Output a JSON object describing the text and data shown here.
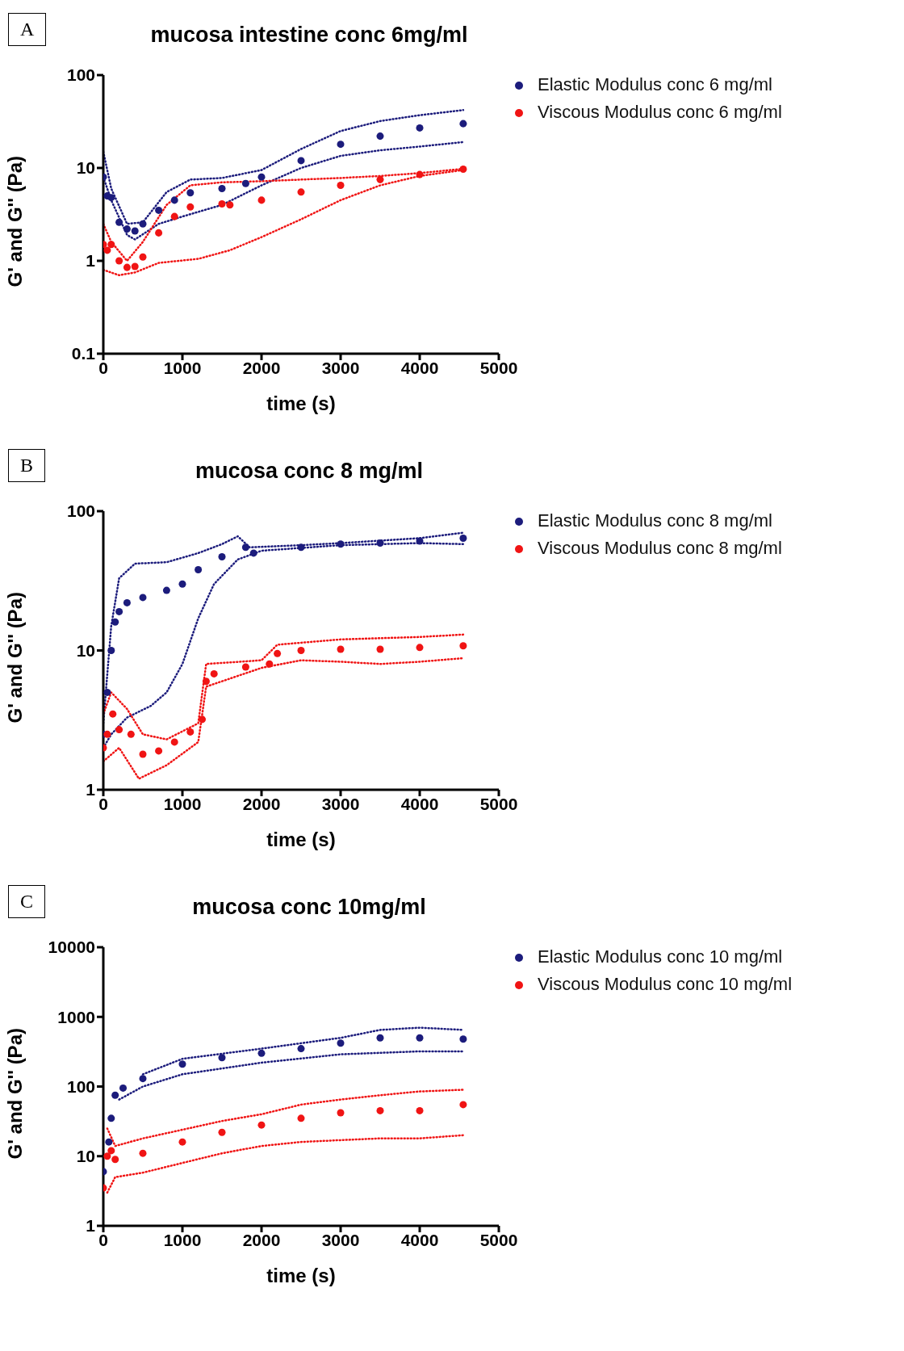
{
  "chart_data": [
    {
      "type": "scatter",
      "title": "mucosa intestine conc 6mg/ml",
      "xlabel": "time (s)",
      "ylabel": "G' and G'' (Pa)",
      "annotations": [
        "A"
      ],
      "log": "y",
      "xlim": [
        0,
        5000
      ],
      "xticks": [
        0,
        1000,
        2000,
        3000,
        4000,
        5000
      ],
      "ylim": [
        0.1,
        100
      ],
      "yticks": [
        0.1,
        1,
        10,
        100
      ],
      "legend": "top right",
      "marker": "circle",
      "series": [
        {
          "name": "Elastic Modulus conc 6 mg/ml",
          "color": "#1c1c7c",
          "x": [
            0,
            50,
            100,
            200,
            300,
            400,
            500,
            700,
            900,
            1100,
            1500,
            1800,
            2000,
            2500,
            3000,
            3500,
            4000,
            4550
          ],
          "values": [
            8,
            5,
            4.8,
            2.6,
            2.2,
            2.1,
            2.5,
            3.5,
            4.5,
            5.4,
            6,
            6.8,
            8,
            12,
            18,
            22,
            27,
            30
          ]
        },
        {
          "name": "Viscous Modulus conc 6 mg/ml",
          "color": "#f01414",
          "x": [
            0,
            50,
            100,
            200,
            300,
            400,
            500,
            700,
            900,
            1100,
            1500,
            1600,
            2000,
            2500,
            3000,
            3500,
            4000,
            4550
          ],
          "values": [
            1.5,
            1.3,
            1.5,
            1.0,
            0.85,
            0.87,
            1.1,
            2.0,
            3.0,
            3.8,
            4.1,
            4.0,
            4.5,
            5.5,
            6.5,
            7.5,
            8.5,
            9.7
          ]
        },
        {
          "type": "line",
          "line_style": "dotted",
          "marker": "none",
          "color": "#1c1c7c",
          "x": [
            0,
            100,
            300,
            500,
            800,
            1100,
            1500,
            2000,
            2500,
            3000,
            3500,
            4000,
            4550
          ],
          "values": [
            15,
            6,
            2.5,
            2.6,
            5.5,
            7.5,
            7.8,
            9.5,
            16,
            25,
            32,
            37,
            42
          ]
        },
        {
          "type": "line",
          "line_style": "dotted",
          "marker": "none",
          "color": "#1c1c7c",
          "x": [
            0,
            100,
            300,
            400,
            700,
            1000,
            1500,
            2000,
            2500,
            3000,
            3500,
            4000,
            4550
          ],
          "values": [
            8,
            4.5,
            1.9,
            1.7,
            2.5,
            3.0,
            4.0,
            6.5,
            10,
            13.5,
            15.5,
            17,
            19
          ]
        },
        {
          "type": "line",
          "line_style": "dotted",
          "marker": "none",
          "color": "#f01414",
          "x": [
            0,
            100,
            300,
            500,
            800,
            1100,
            1500,
            2000,
            2500,
            3000,
            3500,
            4000,
            4550
          ],
          "values": [
            2.5,
            1.6,
            1.0,
            1.6,
            4,
            6.5,
            7,
            7.2,
            7.5,
            7.8,
            8.2,
            8.8,
            9.8
          ]
        },
        {
          "type": "line",
          "line_style": "dotted",
          "marker": "none",
          "color": "#f01414",
          "x": [
            0,
            200,
            400,
            700,
            1200,
            1600,
            2000,
            2500,
            3000,
            3500,
            4000,
            4550
          ],
          "values": [
            0.8,
            0.7,
            0.75,
            0.95,
            1.05,
            1.3,
            1.8,
            2.8,
            4.5,
            6.5,
            8.2,
            9.5
          ]
        }
      ]
    },
    {
      "type": "scatter",
      "title": "mucosa conc 8 mg/ml",
      "xlabel": "time (s)",
      "ylabel": "G' and G'' (Pa)",
      "annotations": [
        "B"
      ],
      "log": "y",
      "xlim": [
        0,
        5000
      ],
      "xticks": [
        0,
        1000,
        2000,
        3000,
        4000,
        5000
      ],
      "ylim": [
        1,
        100
      ],
      "yticks": [
        1,
        10,
        100
      ],
      "legend": "top right",
      "marker": "circle",
      "series": [
        {
          "name": "Elastic Modulus conc 8 mg/ml",
          "color": "#1c1c7c",
          "x": [
            0,
            50,
            100,
            150,
            200,
            300,
            500,
            800,
            1000,
            1200,
            1500,
            1800,
            1900,
            2500,
            3000,
            3500,
            4000,
            4550
          ],
          "values": [
            2.5,
            5,
            10,
            16,
            19,
            22,
            24,
            27,
            30,
            38,
            47,
            55,
            50,
            55,
            58,
            59,
            61,
            64
          ]
        },
        {
          "name": "Viscous Modulus conc 8 mg/ml",
          "color": "#f01414",
          "x": [
            0,
            50,
            120,
            200,
            350,
            500,
            700,
            900,
            1100,
            1250,
            1300,
            1400,
            1800,
            2100,
            2200,
            2500,
            3000,
            3500,
            4000,
            4550
          ],
          "values": [
            2,
            2.5,
            3.5,
            2.7,
            2.5,
            1.8,
            1.9,
            2.2,
            2.6,
            3.2,
            6,
            6.8,
            7.6,
            8,
            9.5,
            10,
            10.2,
            10.2,
            10.5,
            10.8
          ]
        },
        {
          "type": "line",
          "line_style": "dotted",
          "marker": "none",
          "color": "#1c1c7c",
          "x": [
            0,
            100,
            200,
            400,
            800,
            1200,
            1500,
            1700,
            1850,
            2500,
            3000,
            4000,
            4550
          ],
          "values": [
            3,
            15,
            33,
            42,
            43,
            50,
            58,
            66,
            55,
            57,
            59,
            64,
            70
          ]
        },
        {
          "type": "line",
          "line_style": "dotted",
          "marker": "none",
          "color": "#1c1c7c",
          "x": [
            0,
            100,
            300,
            600,
            800,
            1000,
            1200,
            1400,
            1700,
            2000,
            3000,
            4000,
            4550
          ],
          "values": [
            2,
            2.5,
            3.3,
            4,
            5,
            8,
            17,
            30,
            45,
            52,
            57,
            59,
            58
          ]
        },
        {
          "type": "line",
          "line_style": "dotted",
          "marker": "none",
          "color": "#f01414",
          "x": [
            0,
            100,
            300,
            500,
            800,
            1200,
            1300,
            2000,
            2200,
            3000,
            4000,
            4550
          ],
          "values": [
            3.5,
            5,
            3.8,
            2.5,
            2.3,
            3,
            8,
            8.5,
            11,
            12,
            12.5,
            13
          ]
        },
        {
          "type": "line",
          "line_style": "dotted",
          "marker": "none",
          "color": "#f01414",
          "x": [
            0,
            200,
            450,
            800,
            1200,
            1300,
            2000,
            2500,
            3000,
            3500,
            4000,
            4550
          ],
          "values": [
            1.6,
            2,
            1.2,
            1.5,
            2.2,
            5.5,
            7.5,
            8.5,
            8.3,
            8,
            8.3,
            8.8
          ]
        }
      ]
    },
    {
      "type": "scatter",
      "title": "mucosa conc 10mg/ml",
      "xlabel": "time (s)",
      "ylabel": "G' and G'' (Pa)",
      "annotations": [
        "C"
      ],
      "log": "y",
      "xlim": [
        0,
        5000
      ],
      "xticks": [
        0,
        1000,
        2000,
        3000,
        4000,
        5000
      ],
      "ylim": [
        1,
        10000
      ],
      "yticks": [
        1,
        10,
        100,
        1000,
        10000
      ],
      "legend": "top right",
      "marker": "circle",
      "series": [
        {
          "name": "Elastic Modulus conc 10 mg/ml",
          "color": "#1c1c7c",
          "x": [
            0,
            70,
            100,
            150,
            250,
            500,
            1000,
            1500,
            2000,
            2500,
            3000,
            3500,
            4000,
            4550
          ],
          "values": [
            6,
            16,
            35,
            75,
            95,
            130,
            210,
            260,
            300,
            350,
            420,
            500,
            500,
            480
          ]
        },
        {
          "name": "Viscous Modulus conc 10 mg/ml",
          "color": "#f01414",
          "x": [
            0,
            50,
            100,
            150,
            500,
            1000,
            1500,
            2000,
            2500,
            3000,
            3500,
            4000,
            4550
          ],
          "values": [
            3.5,
            10,
            12,
            9,
            11,
            16,
            22,
            28,
            35,
            42,
            45,
            45,
            55
          ]
        },
        {
          "type": "line",
          "line_style": "dotted",
          "marker": "none",
          "color": "#1c1c7c",
          "x": [
            500,
            1000,
            2000,
            3000,
            3500,
            4000,
            4550
          ],
          "values": [
            150,
            250,
            350,
            500,
            650,
            700,
            650
          ]
        },
        {
          "type": "line",
          "line_style": "dotted",
          "marker": "none",
          "color": "#1c1c7c",
          "x": [
            200,
            500,
            1000,
            2000,
            3000,
            4000,
            4550
          ],
          "values": [
            65,
            100,
            150,
            220,
            290,
            320,
            320
          ]
        },
        {
          "type": "line",
          "line_style": "dotted",
          "marker": "none",
          "color": "#f01414",
          "x": [
            50,
            150,
            500,
            1000,
            1500,
            2000,
            2500,
            3000,
            3500,
            4000,
            4550
          ],
          "values": [
            25,
            14,
            18,
            24,
            32,
            40,
            55,
            65,
            75,
            85,
            90
          ]
        },
        {
          "type": "line",
          "line_style": "dotted",
          "marker": "none",
          "color": "#f01414",
          "x": [
            50,
            150,
            500,
            1000,
            1500,
            2000,
            2500,
            3000,
            3500,
            4000,
            4550
          ],
          "values": [
            3,
            5,
            5.8,
            8,
            11,
            14,
            16,
            17,
            18,
            18,
            20
          ]
        }
      ]
    }
  ]
}
